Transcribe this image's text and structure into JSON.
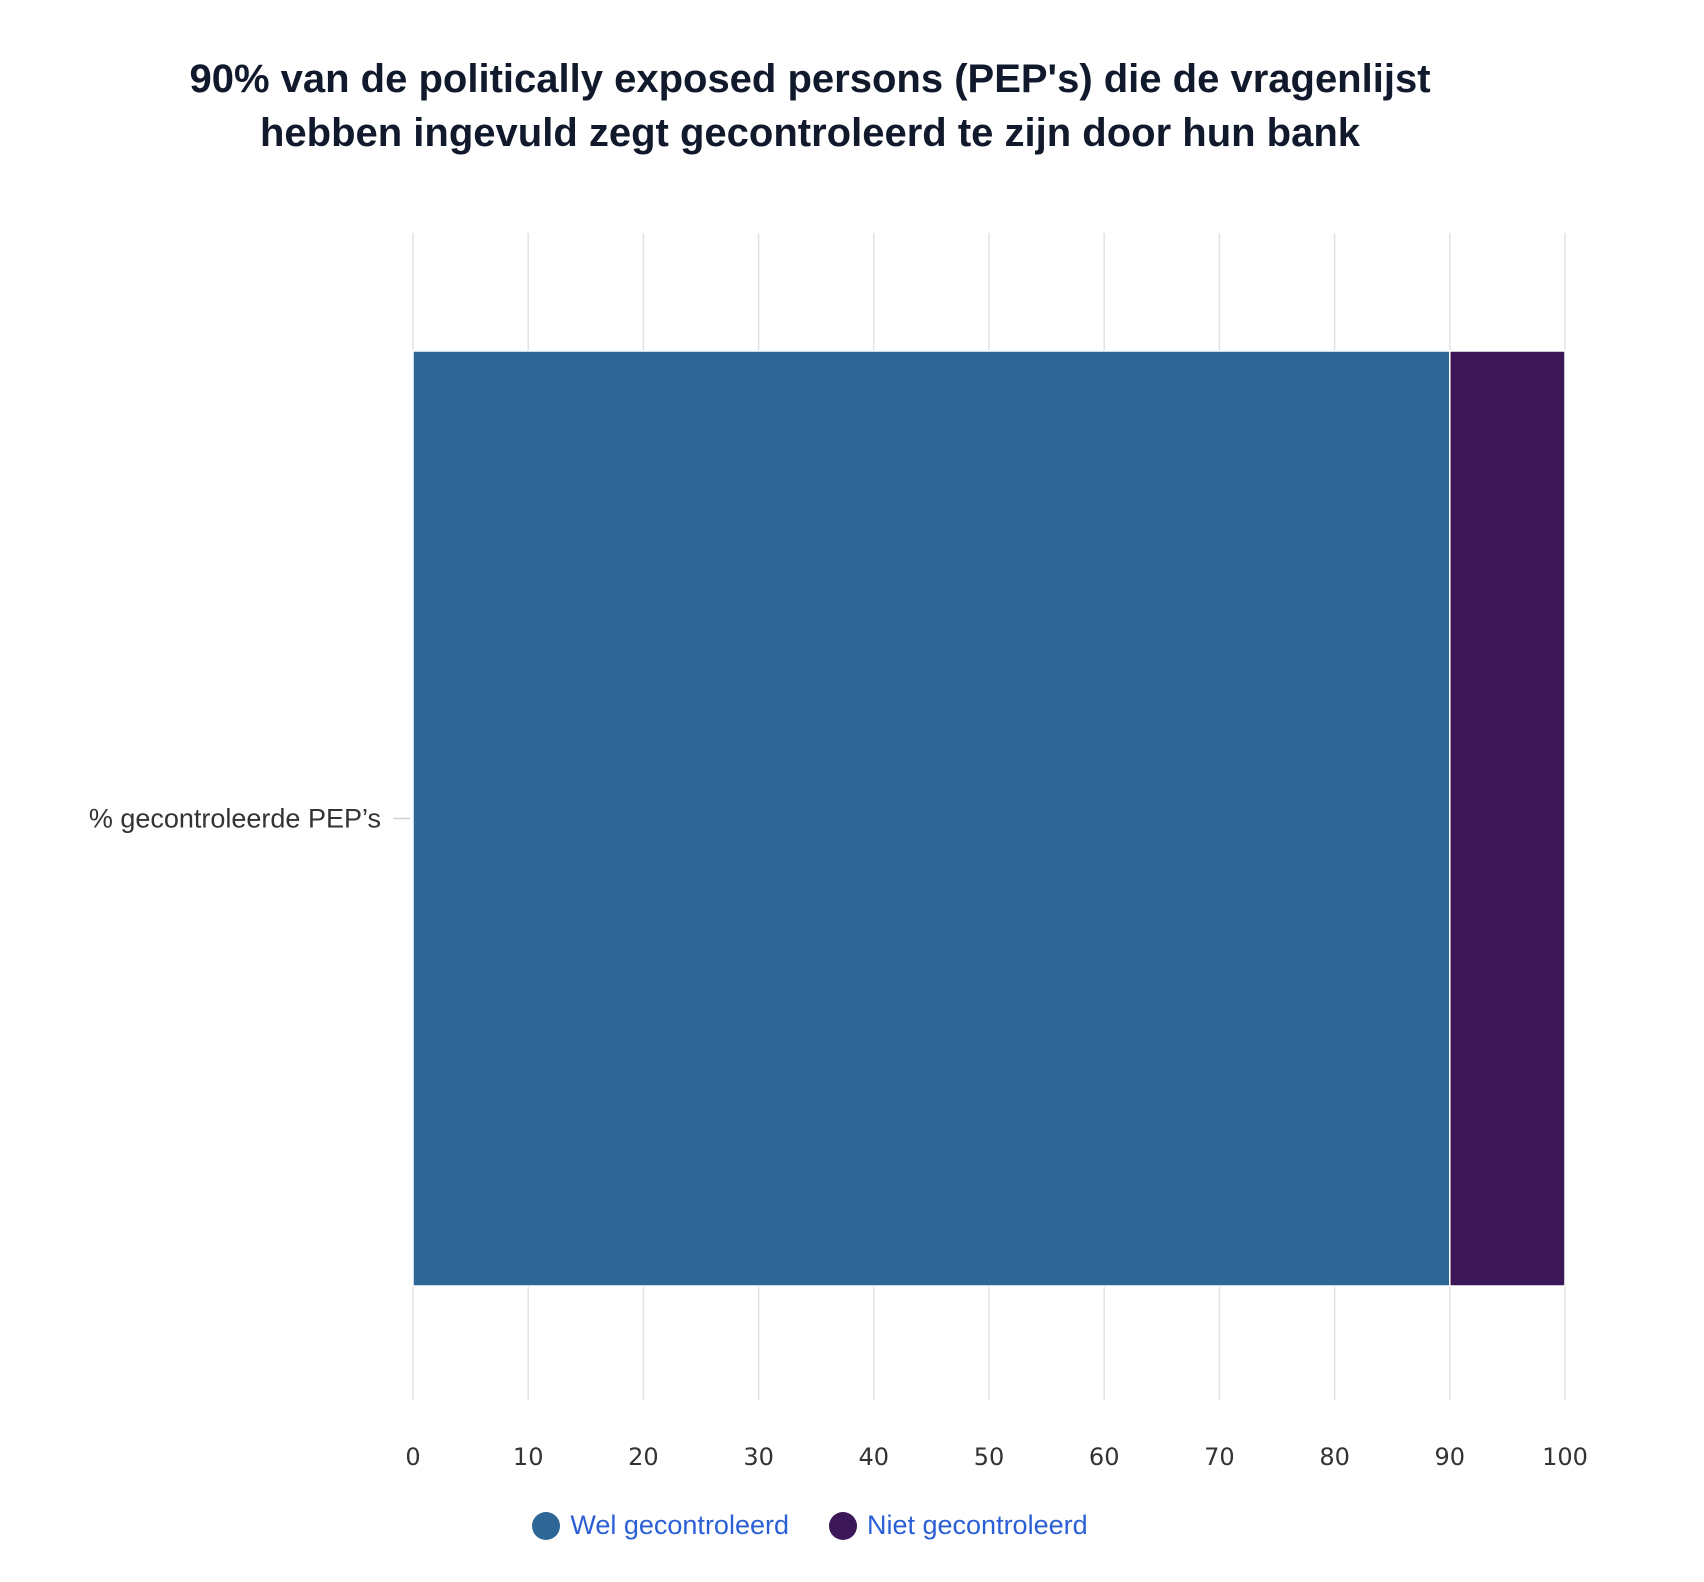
{
  "colors": {
    "wel": "#2e6795",
    "niet": "#3d1858",
    "grid": "#e3e3e3",
    "legend_text": "#2b5fd6"
  },
  "chart_data": {
    "type": "bar",
    "orientation": "horizontal",
    "stacked": true,
    "title_lines": [
      "90% van de politically exposed persons (PEP's) die de vragenlijst",
      "hebben ingevuld zegt gecontroleerd te zijn door hun bank"
    ],
    "categories": [
      "% gecontroleerde PEP’s"
    ],
    "series": [
      {
        "name": "Wel gecontroleerd",
        "values": [
          90
        ],
        "color": "#2e6795"
      },
      {
        "name": "Niet gecontroleerd",
        "values": [
          10
        ],
        "color": "#3d1858"
      }
    ],
    "xlim": [
      0,
      100
    ],
    "xticks": [
      0,
      10,
      20,
      30,
      40,
      50,
      60,
      70,
      80,
      90,
      100
    ],
    "xlabel": "",
    "ylabel": "",
    "grid": true,
    "legend_position": "bottom-center"
  }
}
